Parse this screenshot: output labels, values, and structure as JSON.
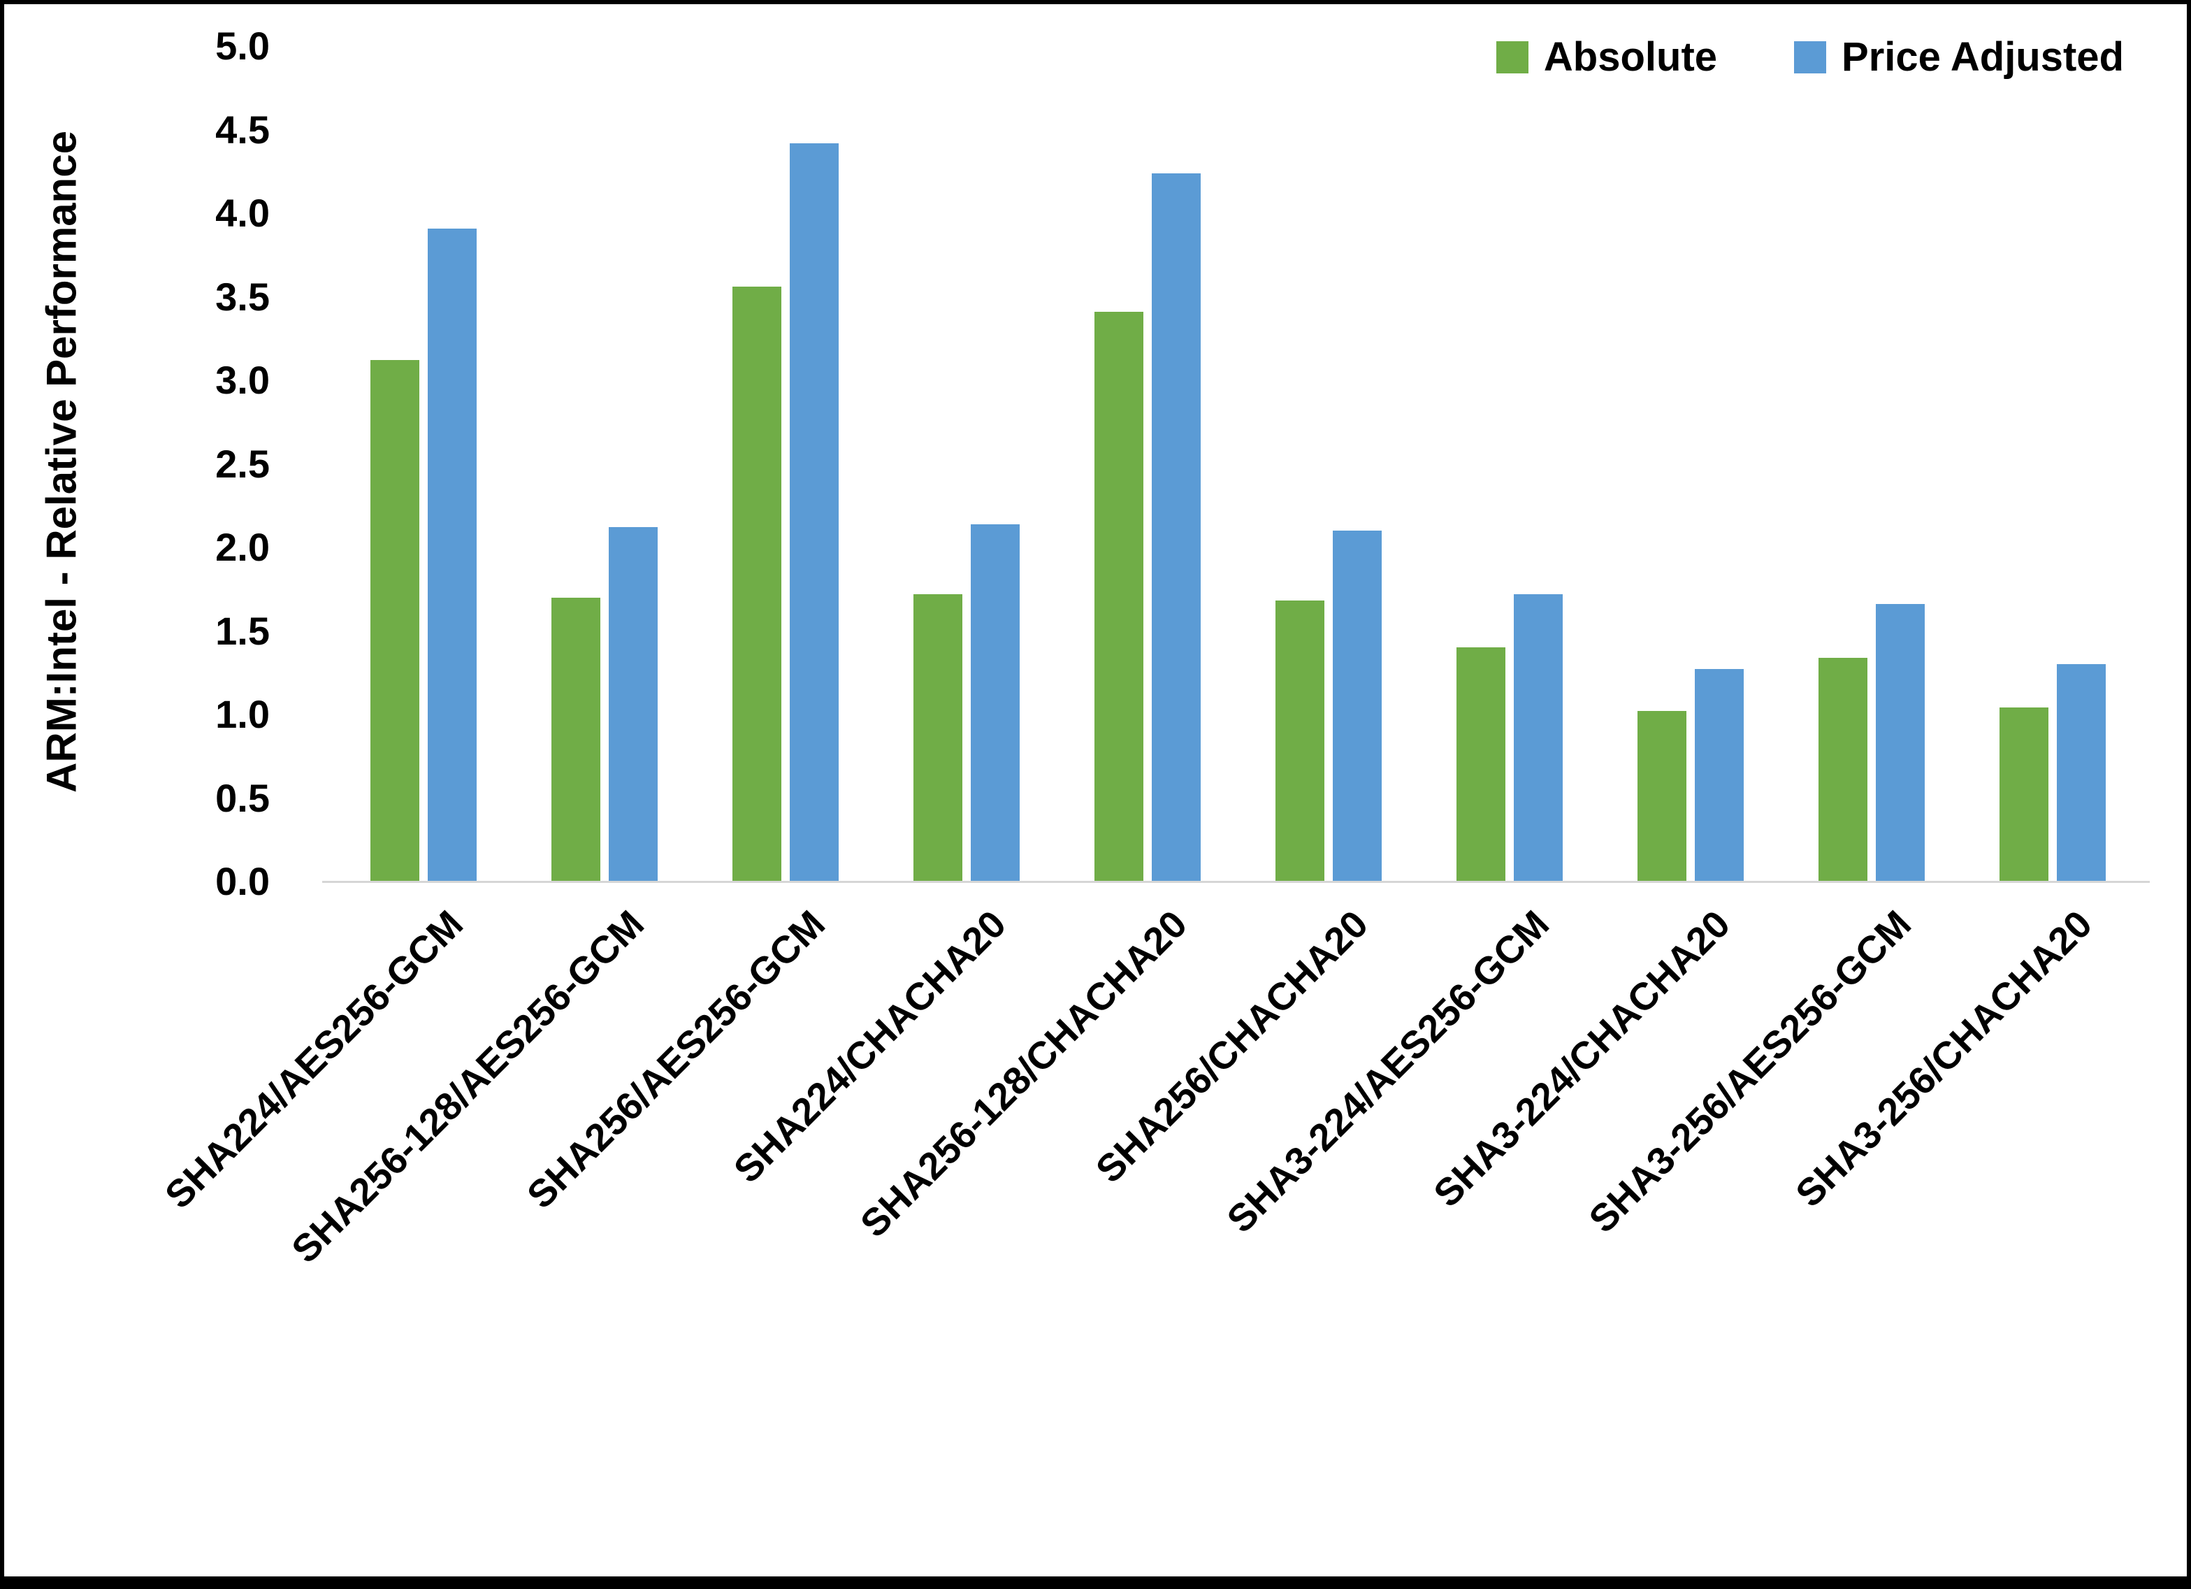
{
  "chart_data": {
    "type": "bar",
    "title": "",
    "xlabel": "",
    "ylabel": "ARM:Intel - Relative Performance",
    "ylim": [
      0,
      5
    ],
    "yticks": [
      0,
      0.5,
      1.0,
      1.5,
      2.0,
      2.5,
      3.0,
      3.5,
      4.0,
      4.5,
      5.0
    ],
    "grid": false,
    "legend_position": "top-right",
    "categories": [
      "SHA224/AES256-GCM",
      "SHA256-128/AES256-GCM",
      "SHA256/AES256-GCM",
      "SHA224/CHACHA20",
      "SHA256-128/CHACHA20",
      "SHA256/CHACHA20",
      "SHA3-224/AES256-GCM",
      "SHA3-224/CHACHA20",
      "SHA3-256/AES256-GCM",
      "SHA3-256/CHACHA20"
    ],
    "series": [
      {
        "name": "Absolute",
        "color": "#70AD47",
        "values": [
          3.12,
          1.7,
          3.56,
          1.72,
          3.41,
          1.68,
          1.4,
          1.02,
          1.34,
          1.04
        ]
      },
      {
        "name": "Price Adjusted",
        "color": "#5B9BD5",
        "values": [
          3.91,
          2.12,
          4.42,
          2.14,
          4.24,
          2.1,
          1.72,
          1.27,
          1.66,
          1.3
        ]
      }
    ]
  },
  "colors": {
    "absolute": "#70AD47",
    "price_adjusted": "#5B9BD5",
    "axis_line": "#d6d6d6",
    "frame": "#000000",
    "background": "#ffffff"
  }
}
